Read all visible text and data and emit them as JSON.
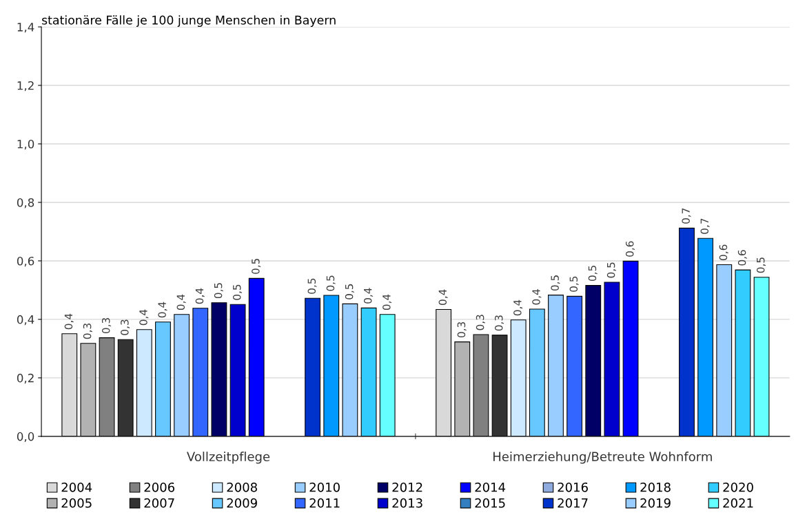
{
  "chart_data": {
    "type": "bar",
    "title": "stationäre Fälle je 100 junge Menschen in Bayern",
    "categories": [
      "Vollzeitpflege",
      "Heimerziehung/Betreute Wohnform"
    ],
    "series": [
      {
        "name": "2004",
        "color": "#d9d9d9",
        "values": [
          0.351,
          0.434
        ],
        "value_labels": [
          "0,4",
          "0,4"
        ]
      },
      {
        "name": "2005",
        "color": "#b2b2b2",
        "values": [
          0.318,
          0.323
        ],
        "value_labels": [
          "0,3",
          "0,3"
        ]
      },
      {
        "name": "2006",
        "color": "#808080",
        "values": [
          0.337,
          0.348
        ],
        "value_labels": [
          "0,3",
          "0,3"
        ]
      },
      {
        "name": "2007",
        "color": "#333333",
        "values": [
          0.331,
          0.346
        ],
        "value_labels": [
          "0,3",
          "0,3"
        ]
      },
      {
        "name": "2008",
        "color": "#cce9ff",
        "values": [
          0.365,
          0.398
        ],
        "value_labels": [
          "0,4",
          "0,4"
        ]
      },
      {
        "name": "2009",
        "color": "#66c8ff",
        "values": [
          0.391,
          0.435
        ],
        "value_labels": [
          "0,4",
          "0,4"
        ]
      },
      {
        "name": "2010",
        "color": "#99ccff",
        "values": [
          0.417,
          0.483
        ],
        "value_labels": [
          "0,4",
          "0,5"
        ]
      },
      {
        "name": "2011",
        "color": "#3366ff",
        "values": [
          0.438,
          0.479
        ],
        "value_labels": [
          "0,4",
          "0,5"
        ]
      },
      {
        "name": "2012",
        "color": "#000066",
        "values": [
          0.457,
          0.516
        ],
        "value_labels": [
          "0,5",
          "0,5"
        ]
      },
      {
        "name": "2013",
        "color": "#0000cc",
        "values": [
          0.451,
          0.527
        ],
        "value_labels": [
          "0,5",
          "0,5"
        ]
      },
      {
        "name": "2014",
        "color": "#0000ff",
        "values": [
          0.54,
          0.599
        ],
        "value_labels": [
          "0,5",
          "0,6"
        ]
      },
      {
        "name": "2015",
        "color": "#337fc0",
        "values": [
          null,
          null
        ]
      },
      {
        "name": "2016",
        "color": "#8faadc",
        "values": [
          null,
          null
        ]
      },
      {
        "name": "2017",
        "color": "#0033cc",
        "values": [
          0.472,
          0.712
        ],
        "value_labels": [
          "0,5",
          "0,7"
        ]
      },
      {
        "name": "2018",
        "color": "#0099ff",
        "values": [
          0.482,
          0.677
        ],
        "value_labels": [
          "0,5",
          "0,7"
        ]
      },
      {
        "name": "2019",
        "color": "#99ccff",
        "values": [
          0.453,
          0.587
        ],
        "value_labels": [
          "0,5",
          "0,6"
        ]
      },
      {
        "name": "2020",
        "color": "#33ccff",
        "values": [
          0.439,
          0.569
        ],
        "value_labels": [
          "0,4",
          "0,6"
        ]
      },
      {
        "name": "2021",
        "color": "#66ffff",
        "values": [
          0.417,
          0.544
        ],
        "value_labels": [
          "0,4",
          "0,5"
        ]
      }
    ],
    "ylim": [
      0,
      1.4
    ],
    "yticks": [
      {
        "value": 0,
        "label": "0,0"
      },
      {
        "value": 0.2,
        "label": "0,2"
      },
      {
        "value": 0.4,
        "label": "0,4"
      },
      {
        "value": 0.6,
        "label": "0,6"
      },
      {
        "value": 0.8,
        "label": "0,8"
      },
      {
        "value": 1.0,
        "label": "1,0"
      },
      {
        "value": 1.2,
        "label": "1,2"
      },
      {
        "value": 1.4,
        "label": "1,4"
      }
    ],
    "grid": "y",
    "legend": "bottom"
  }
}
